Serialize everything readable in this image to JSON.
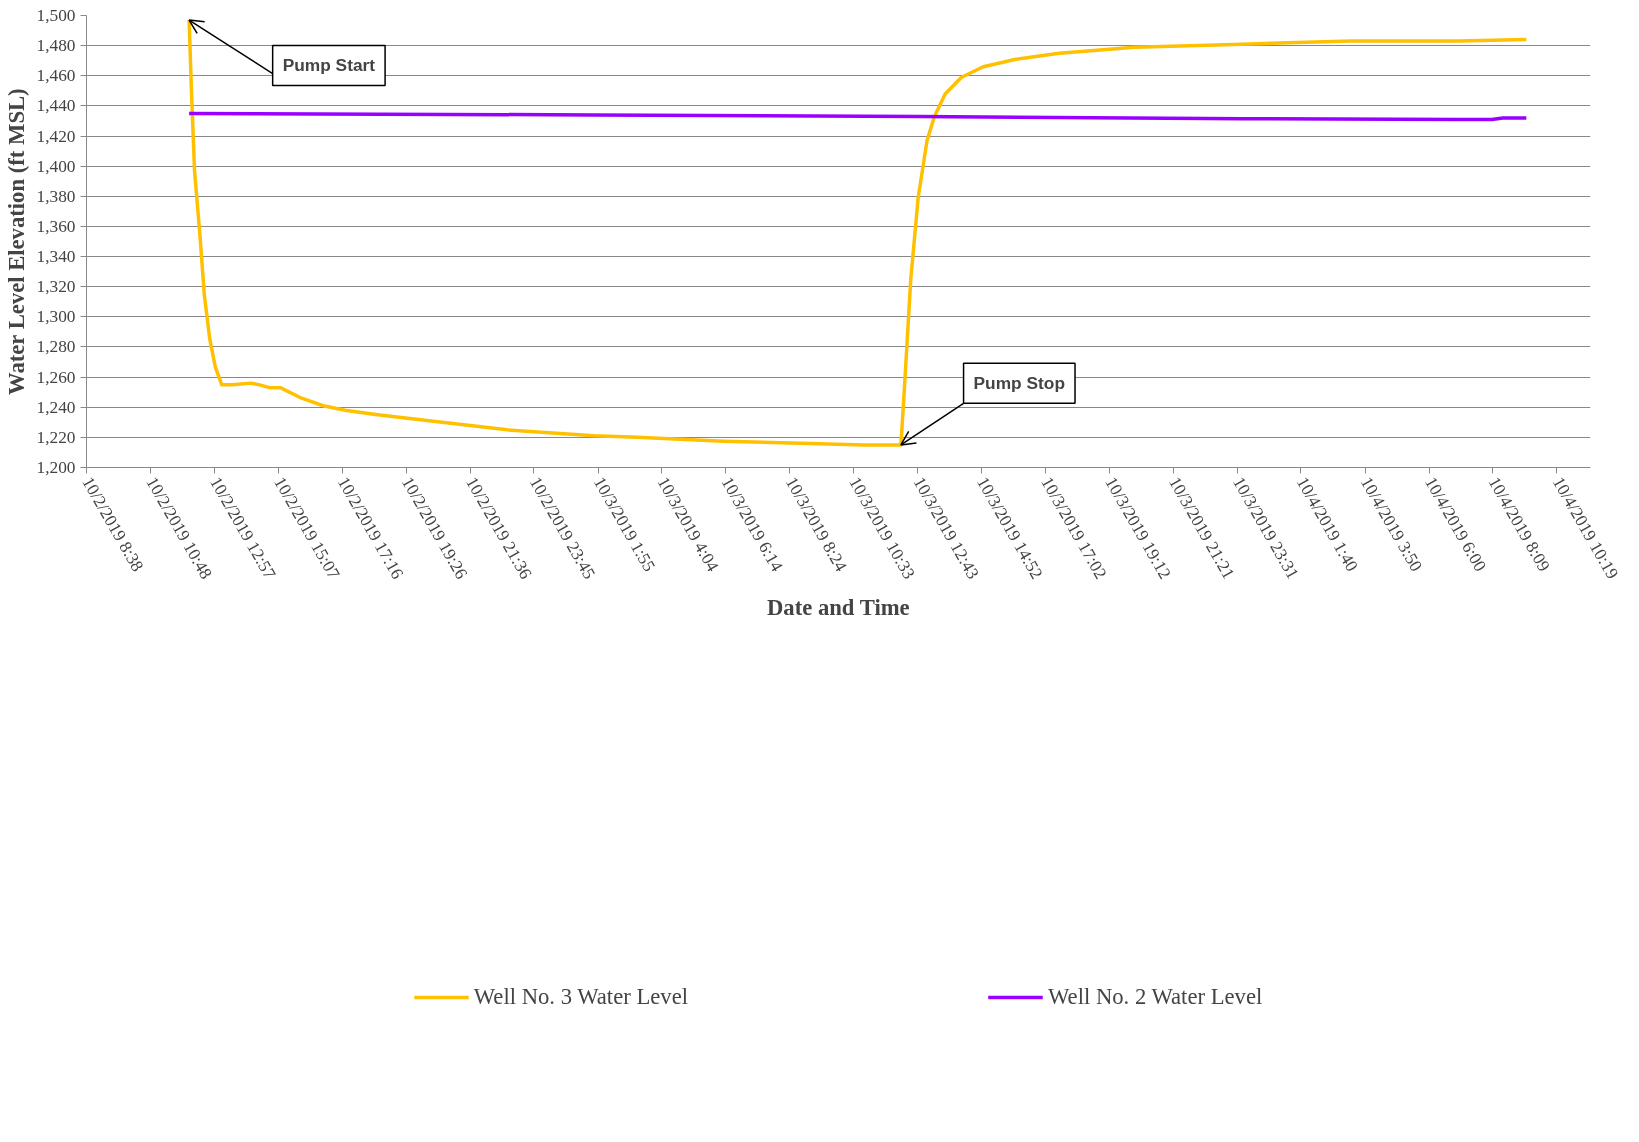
{
  "chart_data": {
    "type": "line",
    "xlabel": "Date and Time",
    "ylabel": "Water Level Elevation (ft MSL)",
    "xlim": [
      "2019-10-02T08:38",
      "2019-10-04T11:27"
    ],
    "xticks": [
      {
        "value": "2019-10-02T08:38",
        "label": "10/2/2019 8:38"
      },
      {
        "value": "2019-10-02T10:48",
        "label": "10/2/2019 10:48"
      },
      {
        "value": "2019-10-02T12:57",
        "label": "10/2/2019 12:57"
      },
      {
        "value": "2019-10-02T15:07",
        "label": "10/2/2019 15:07"
      },
      {
        "value": "2019-10-02T17:16",
        "label": "10/2/2019 17:16"
      },
      {
        "value": "2019-10-02T19:26",
        "label": "10/2/2019 19:26"
      },
      {
        "value": "2019-10-02T21:36",
        "label": "10/2/2019 21:36"
      },
      {
        "value": "2019-10-02T23:45",
        "label": "10/2/2019 23:45"
      },
      {
        "value": "2019-10-03T01:55",
        "label": "10/3/2019 1:55"
      },
      {
        "value": "2019-10-03T04:04",
        "label": "10/3/2019 4:04"
      },
      {
        "value": "2019-10-03T06:14",
        "label": "10/3/2019 6:14"
      },
      {
        "value": "2019-10-03T08:24",
        "label": "10/3/2019 8:24"
      },
      {
        "value": "2019-10-03T10:33",
        "label": "10/3/2019 10:33"
      },
      {
        "value": "2019-10-03T12:43",
        "label": "10/3/2019 12:43"
      },
      {
        "value": "2019-10-03T14:52",
        "label": "10/3/2019 14:52"
      },
      {
        "value": "2019-10-03T17:02",
        "label": "10/3/2019 17:02"
      },
      {
        "value": "2019-10-03T19:12",
        "label": "10/3/2019 19:12"
      },
      {
        "value": "2019-10-03T21:21",
        "label": "10/3/2019 21:21"
      },
      {
        "value": "2019-10-03T23:31",
        "label": "10/3/2019 23:31"
      },
      {
        "value": "2019-10-04T01:40",
        "label": "10/4/2019 1:40"
      },
      {
        "value": "2019-10-04T03:50",
        "label": "10/4/2019 3:50"
      },
      {
        "value": "2019-10-04T06:00",
        "label": "10/4/2019 6:00"
      },
      {
        "value": "2019-10-04T08:09",
        "label": "10/4/2019 8:09"
      },
      {
        "value": "2019-10-04T10:19",
        "label": "10/4/2019 10:19"
      }
    ],
    "ylim": [
      1200,
      1500
    ],
    "yticks": [
      {
        "value": 1200,
        "label": "1,200"
      },
      {
        "value": 1220,
        "label": "1,220"
      },
      {
        "value": 1240,
        "label": "1,240"
      },
      {
        "value": 1260,
        "label": "1,260"
      },
      {
        "value": 1280,
        "label": "1,280"
      },
      {
        "value": 1300,
        "label": "1,300"
      },
      {
        "value": 1320,
        "label": "1,320"
      },
      {
        "value": 1340,
        "label": "1,340"
      },
      {
        "value": 1360,
        "label": "1,360"
      },
      {
        "value": 1380,
        "label": "1,380"
      },
      {
        "value": 1400,
        "label": "1,400"
      },
      {
        "value": 1420,
        "label": "1,420"
      },
      {
        "value": 1440,
        "label": "1,440"
      },
      {
        "value": 1460,
        "label": "1,460"
      },
      {
        "value": 1480,
        "label": "1,480"
      },
      {
        "value": 1500,
        "label": "1,500"
      }
    ],
    "grid": "y",
    "legend": "bottom",
    "line_style": "solid",
    "series": [
      {
        "name": "Well No. 3 Water Level",
        "color": "#ffc000",
        "x": [
          "2019-10-02T12:06",
          "2019-10-02T12:11",
          "2019-10-02T12:17",
          "2019-10-02T12:28",
          "2019-10-02T12:37",
          "2019-10-02T12:48",
          "2019-10-02T12:59",
          "2019-10-02T13:12",
          "2019-10-02T13:34",
          "2019-10-02T14:11",
          "2019-10-02T14:27",
          "2019-10-02T14:49",
          "2019-10-02T15:11",
          "2019-10-02T15:54",
          "2019-10-02T16:38",
          "2019-10-02T17:22",
          "2019-10-02T18:28",
          "2019-10-02T20:39",
          "2019-10-02T22:51",
          "2019-10-03T01:47",
          "2019-10-03T03:14",
          "2019-10-03T06:10",
          "2019-10-03T09:05",
          "2019-10-03T10:55",
          "2019-10-03T12:09",
          "2019-10-03T12:16",
          "2019-10-03T12:29",
          "2019-10-03T12:44",
          "2019-10-03T13:02",
          "2019-10-03T13:17",
          "2019-10-03T13:39",
          "2019-10-03T14:12",
          "2019-10-03T14:56",
          "2019-10-03T16:02",
          "2019-10-03T17:30",
          "2019-10-03T20:03",
          "2019-10-03T23:42",
          "2019-10-04T03:22",
          "2019-10-04T07:01",
          "2019-10-04T09:17"
        ],
        "values": [
          1497,
          1448,
          1397,
          1354,
          1314,
          1285,
          1267,
          1255,
          1255,
          1256,
          1255,
          1253,
          1253,
          1246,
          1241,
          1238,
          1235,
          1230,
          1225,
          1221,
          1220,
          1217.5,
          1216,
          1215,
          1215,
          1252,
          1325,
          1379,
          1417,
          1433,
          1448,
          1459,
          1466,
          1471,
          1475,
          1479,
          1481,
          1483,
          1483,
          1484
        ]
      },
      {
        "name": "Well No. 2 Water Level",
        "color": "#9900ff",
        "x": [
          "2019-10-02T12:06",
          "2019-10-03T01:47",
          "2019-10-03T12:44",
          "2019-10-03T23:42",
          "2019-10-04T07:01",
          "2019-10-04T08:07",
          "2019-10-04T08:29",
          "2019-10-04T09:17"
        ],
        "values": [
          1435,
          1434,
          1433,
          1431.5,
          1431,
          1431,
          1432,
          1432
        ]
      }
    ],
    "annotations": [
      {
        "text": "Pump Start",
        "x": "2019-10-02T12:06",
        "y": 1497
      },
      {
        "text": "Pump Stop",
        "x": "2019-10-03T12:09",
        "y": 1215
      }
    ]
  }
}
